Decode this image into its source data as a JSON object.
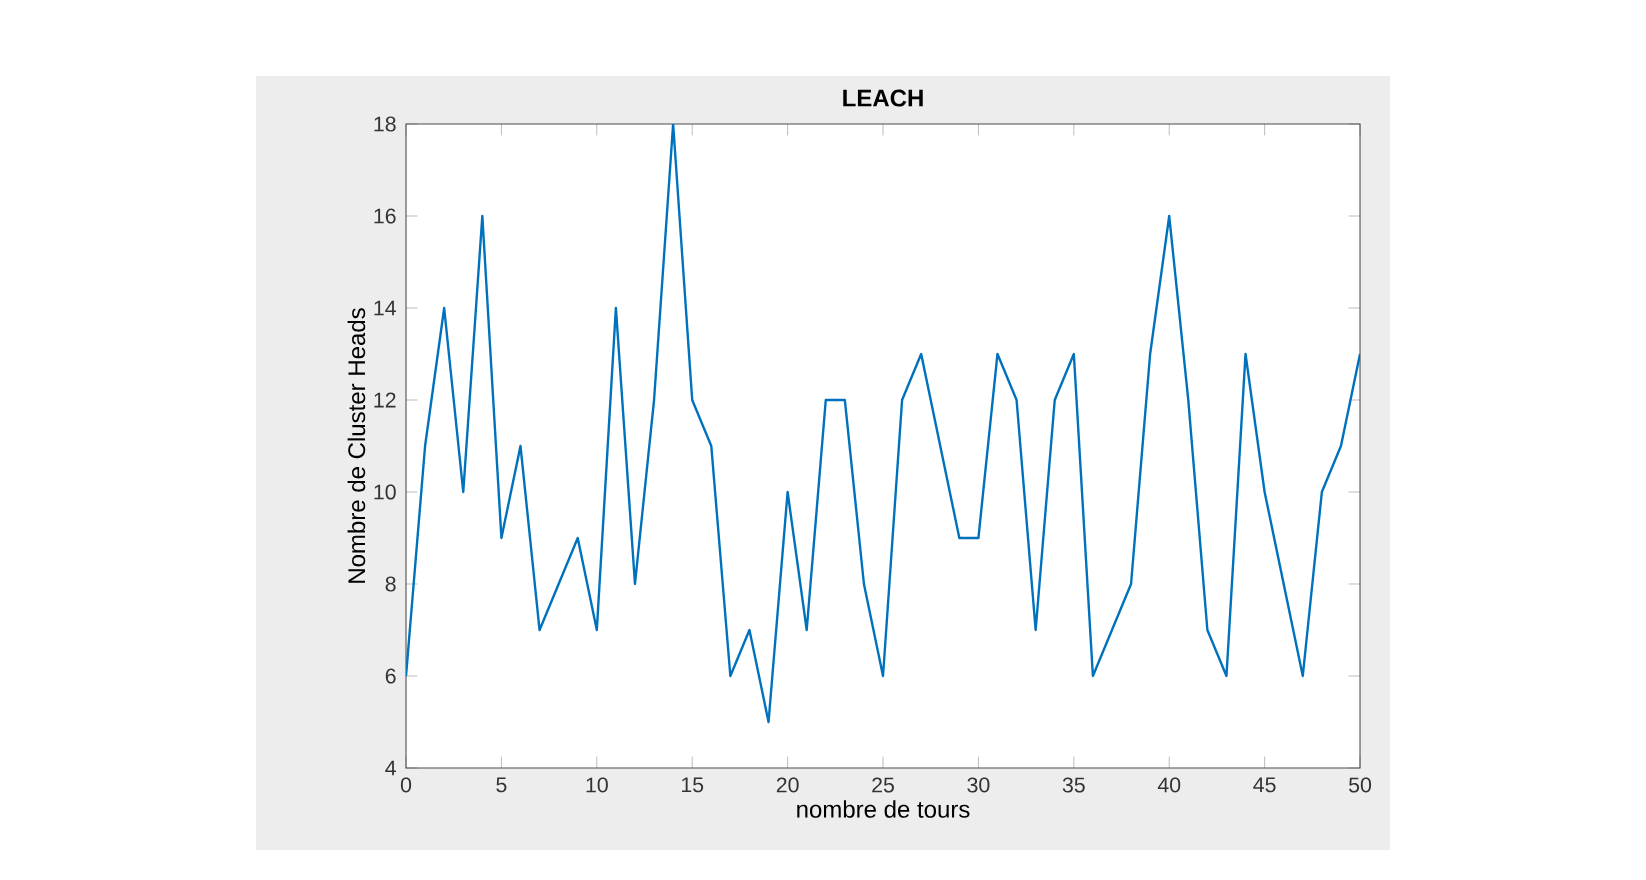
{
  "chart_data": {
    "type": "line",
    "title": "LEACH",
    "xlabel": "nombre de tours",
    "ylabel": "Nombre de Cluster Heads",
    "x": [
      0,
      1,
      2,
      3,
      4,
      5,
      6,
      7,
      8,
      9,
      10,
      11,
      12,
      13,
      14,
      15,
      16,
      17,
      18,
      19,
      20,
      21,
      22,
      23,
      24,
      25,
      26,
      27,
      28,
      29,
      30,
      31,
      32,
      33,
      34,
      35,
      36,
      37,
      38,
      39,
      40,
      41,
      42,
      43,
      44,
      45,
      46,
      47,
      48,
      49,
      50
    ],
    "series": [
      {
        "color": "#0072bd",
        "values": [
          6,
          11,
          14,
          10,
          16,
          9,
          11,
          7,
          8,
          9,
          7,
          14,
          8,
          12,
          18,
          12,
          11,
          6,
          7,
          5,
          10,
          7,
          12,
          12,
          8,
          6,
          12,
          13,
          11,
          9,
          9,
          13,
          12,
          7,
          12,
          13,
          6,
          7,
          8,
          13,
          16,
          12,
          7,
          6,
          13,
          10,
          8,
          6,
          10,
          11,
          13
        ]
      }
    ],
    "xlim": [
      0,
      50
    ],
    "ylim": [
      4,
      18
    ],
    "xticks": [
      0,
      5,
      10,
      15,
      20,
      25,
      30,
      35,
      40,
      45,
      50
    ],
    "yticks": [
      4,
      6,
      8,
      10,
      12,
      14,
      16,
      18
    ],
    "grid": false,
    "marker": "none",
    "line_style": "solid"
  }
}
